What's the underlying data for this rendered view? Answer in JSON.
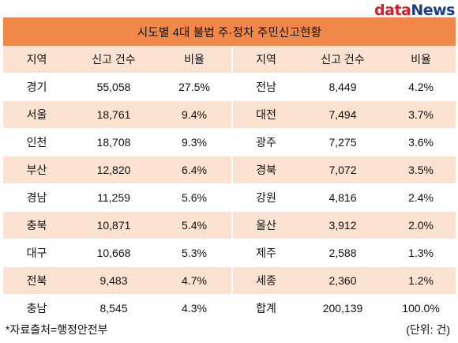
{
  "brand": {
    "part1": "data",
    "part2": "News"
  },
  "title": "시도별 4대 불법 주·정차 주민신고현황",
  "headers": [
    "지역",
    "신고 건수",
    "비율",
    "지역",
    "신고 건수",
    "비율"
  ],
  "rows": [
    [
      "경기",
      "55,058",
      "27.5%",
      "전남",
      "8,449",
      "4.2%"
    ],
    [
      "서울",
      "18,761",
      "9.4%",
      "대전",
      "7,494",
      "3.7%"
    ],
    [
      "인천",
      "18,708",
      "9.3%",
      "광주",
      "7,275",
      "3.6%"
    ],
    [
      "부산",
      "12,820",
      "6.4%",
      "경북",
      "7,072",
      "3.5%"
    ],
    [
      "경남",
      "11,259",
      "5.6%",
      "강원",
      "4,816",
      "2.4%"
    ],
    [
      "충북",
      "10,871",
      "5.4%",
      "울산",
      "3,912",
      "2.0%"
    ],
    [
      "대구",
      "10,668",
      "5.3%",
      "제주",
      "2,588",
      "1.3%"
    ],
    [
      "전북",
      "9,483",
      "4.7%",
      "세종",
      "2,360",
      "1.2%"
    ],
    [
      "충남",
      "8,545",
      "4.3%",
      "합계",
      "200,139",
      "100.0%"
    ]
  ],
  "footer": {
    "source": "*자료출처=행정안전부",
    "unit": "(단위: 건)"
  },
  "colors": {
    "title_bg": "#f0884a",
    "band_bg": "#fbe2d1",
    "brand_red": "#d11f2a",
    "brand_blue": "#1d3f8a"
  }
}
